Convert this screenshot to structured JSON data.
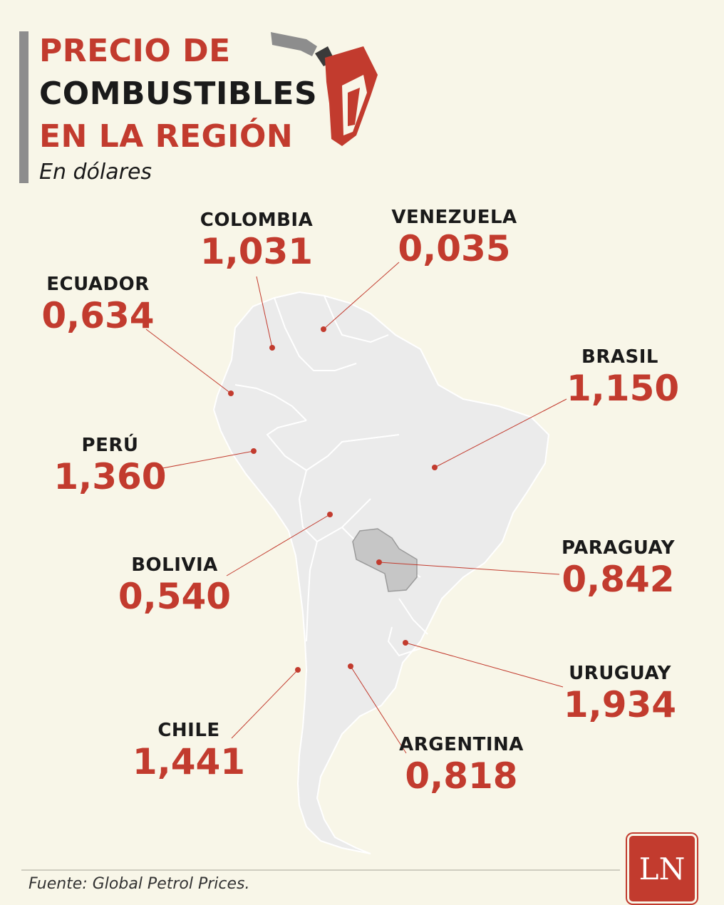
{
  "header": {
    "title_line1": "PRECIO DE",
    "title_line2": "COMBUSTIBLES",
    "title_line3": "EN LA REGIÓN",
    "subtitle": "En dólares"
  },
  "colors": {
    "accent": "#c23b2e",
    "background": "#f8f6e8",
    "land": "#ebebeb",
    "highlight_land": "#c6c6c6",
    "border": "#ffffff"
  },
  "icons": {
    "pump": "fuel-pump-icon"
  },
  "countries": [
    {
      "id": "colombia",
      "name": "COLOMBIA",
      "price": "1,031"
    },
    {
      "id": "venezuela",
      "name": "VENEZUELA",
      "price": "0,035"
    },
    {
      "id": "ecuador",
      "name": "ECUADOR",
      "price": "0,634"
    },
    {
      "id": "brasil",
      "name": "BRASIL",
      "price": "1,150"
    },
    {
      "id": "peru",
      "name": "PERÚ",
      "price": "1,360"
    },
    {
      "id": "bolivia",
      "name": "BOLIVIA",
      "price": "0,540"
    },
    {
      "id": "paraguay",
      "name": "PARAGUAY",
      "price": "0,842"
    },
    {
      "id": "uruguay",
      "name": "URUGUAY",
      "price": "1,934"
    },
    {
      "id": "chile",
      "name": "CHILE",
      "price": "1,441"
    },
    {
      "id": "argentina",
      "name": "ARGENTINA",
      "price": "0,818"
    }
  ],
  "footer": {
    "source": "Fuente: Global Petrol Prices.",
    "logo": "LN"
  }
}
